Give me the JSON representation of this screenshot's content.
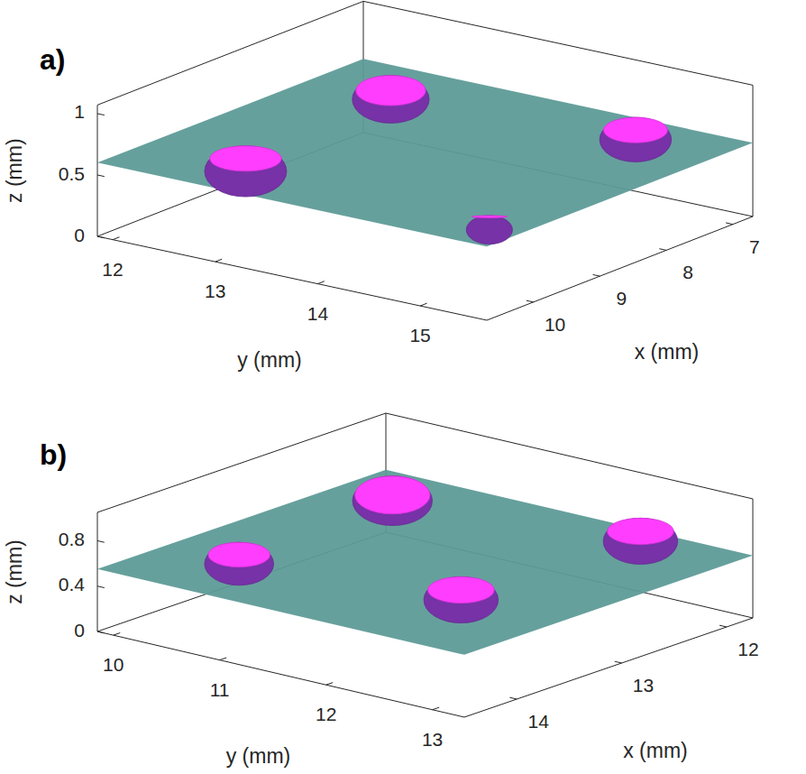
{
  "chart_data": [
    {
      "type": "scatter3d",
      "title": "a)",
      "xlabel": "x (mm)",
      "ylabel": "y (mm)",
      "zlabel": "z (mm)",
      "xlim": [
        6.7,
        10.7
      ],
      "ylim": [
        11.85,
        15.65
      ],
      "zlim": [
        0,
        1.07
      ],
      "xticks": [
        7,
        8,
        9,
        10
      ],
      "yticks": [
        12,
        13,
        14,
        15
      ],
      "zticks": [
        0,
        0.5,
        1
      ],
      "plane": {
        "z": 0.6,
        "color": "#5e9b98"
      },
      "series": [
        {
          "color": "#ff3dff",
          "marker": "isosurface",
          "x": [
            10.12,
            7.86,
            7.4,
            9.66
          ],
          "y": [
            12.92,
            12.87,
            14.96,
            15.0
          ],
          "z": [
            0.6,
            0.7,
            0.65,
            0.4
          ],
          "size": [
            0.8,
            0.75,
            0.7,
            0.45
          ]
        }
      ]
    },
    {
      "type": "scatter3d",
      "title": "b)",
      "xlabel": "x (mm)",
      "ylabel": "y (mm)",
      "zlabel": "z (mm)",
      "xlim": [
        11.75,
        14.5
      ],
      "ylim": [
        9.85,
        13.3
      ],
      "zlim": [
        0,
        1.05
      ],
      "xticks": [
        12,
        13,
        14
      ],
      "yticks": [
        10,
        11,
        12,
        13
      ],
      "zticks": [
        0,
        0.4,
        0.8
      ],
      "plane": {
        "z": 0.55,
        "color": "#5e9b98"
      },
      "series": [
        {
          "color": "#ff3dff",
          "marker": "isosurface",
          "x": [
            13.96,
            12.61,
            12.04,
            13.7
          ],
          "y": [
            10.65,
            10.76,
            12.53,
            12.48
          ],
          "z": [
            0.6,
            0.75,
            0.6,
            0.6
          ],
          "size": [
            0.65,
            0.75,
            0.7,
            0.7
          ]
        }
      ]
    }
  ]
}
